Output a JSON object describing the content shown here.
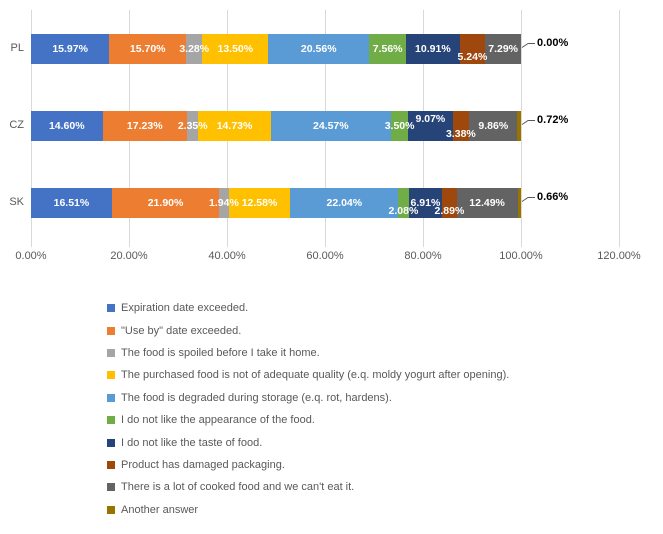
{
  "chart_data": {
    "type": "bar",
    "orientation": "horizontal",
    "stacked": true,
    "title": "",
    "categories": [
      "PL",
      "CZ",
      "SK"
    ],
    "series": [
      {
        "name": "Expiration date exceeded.",
        "color": "#4472C4",
        "values": [
          15.97,
          14.6,
          16.51
        ]
      },
      {
        "name": "\"Use by\" date exceeded.",
        "color": "#ED7D31",
        "values": [
          15.7,
          17.23,
          21.9
        ]
      },
      {
        "name": "The food is spoiled before I take it home.",
        "color": "#A5A5A5",
        "values": [
          3.28,
          2.35,
          1.94
        ]
      },
      {
        "name": "The purchased food is not of adequate quality (e.q. moldy yogurt after opening).",
        "color": "#FFC000",
        "values": [
          13.5,
          14.73,
          12.58
        ]
      },
      {
        "name": "The food is degraded during storage (e.q. rot, hardens).",
        "color": "#5B9BD5",
        "values": [
          20.56,
          24.57,
          22.04
        ]
      },
      {
        "name": "I do not like the appearance of the food.",
        "color": "#70AD47",
        "values": [
          7.56,
          3.5,
          2.08
        ]
      },
      {
        "name": "I do not like the taste of food.",
        "color": "#264478",
        "values": [
          10.91,
          9.07,
          6.91
        ]
      },
      {
        "name": "Product has damaged packaging.",
        "color": "#9E480E",
        "values": [
          5.24,
          3.38,
          2.89
        ]
      },
      {
        "name": "There is a lot of cooked food and we can't eat it.",
        "color": "#636363",
        "values": [
          7.29,
          9.86,
          12.49
        ]
      },
      {
        "name": "Another answer",
        "color": "#997300",
        "values": [
          0.0,
          0.72,
          0.66
        ]
      }
    ],
    "x_axis": {
      "ticks": [
        "0.00%",
        "20.00%",
        "40.00%",
        "60.00%",
        "80.00%",
        "100.00%",
        "120.00%"
      ],
      "min": 0,
      "max": 120,
      "gridlines": true
    },
    "callout_labels": [
      "0.00%",
      "0.72%",
      "0.66%"
    ],
    "data_label_format": "0.00%",
    "legend_position": "bottom"
  }
}
